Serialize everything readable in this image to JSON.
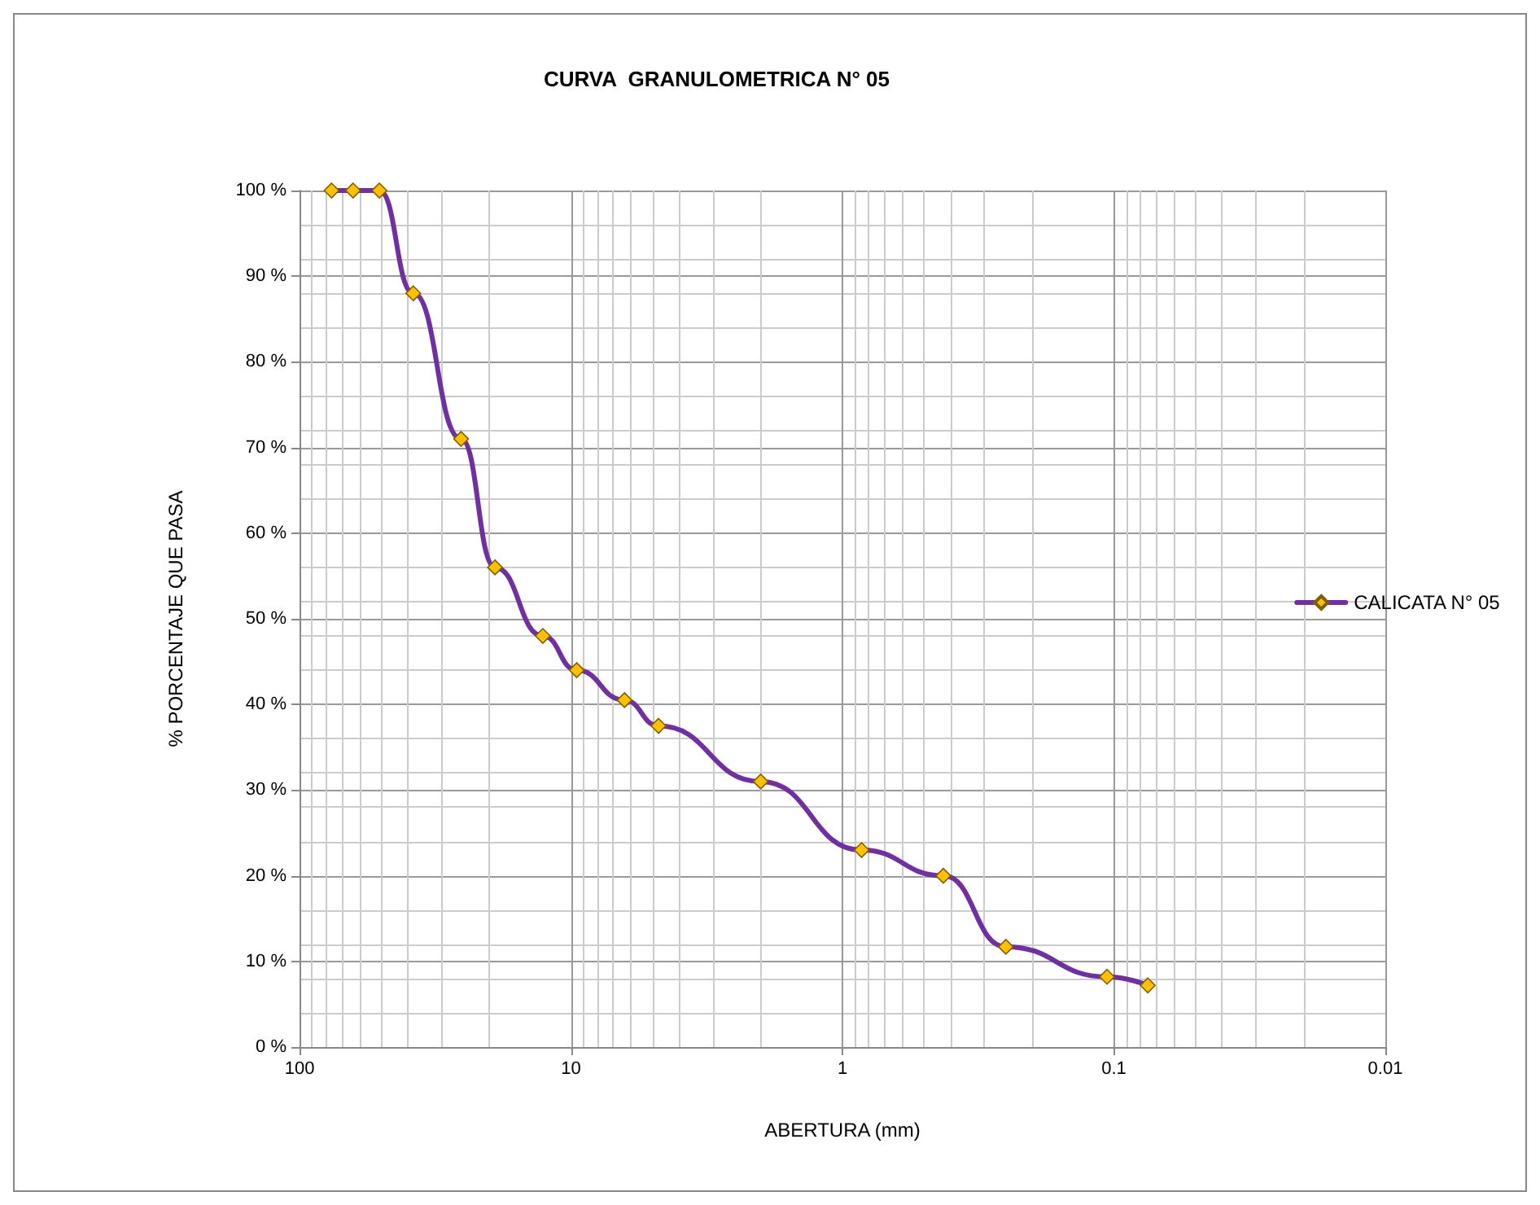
{
  "chart_data": {
    "type": "line",
    "title": "CURVA  GRANULOMETRICA N° 05",
    "xlabel": "ABERTURA (mm)",
    "ylabel": "% PORCENTAJE QUE PASA",
    "log": "x",
    "xlim": [
      100,
      0.01
    ],
    "xticks": [
      100,
      10,
      1,
      0.1,
      0.01
    ],
    "ylim": [
      0,
      100
    ],
    "yticks": [
      {
        "value": 0,
        "label": "0 %"
      },
      {
        "value": 10,
        "label": "10 %"
      },
      {
        "value": 20,
        "label": "20 %"
      },
      {
        "value": 30,
        "label": "30 %"
      },
      {
        "value": 40,
        "label": "40 %"
      },
      {
        "value": 50,
        "label": "50 %"
      },
      {
        "value": 60,
        "label": "60 %"
      },
      {
        "value": 70,
        "label": "70 %"
      },
      {
        "value": 80,
        "label": "80 %"
      },
      {
        "value": 90,
        "label": "90 %"
      },
      {
        "value": 100,
        "label": "100 %"
      }
    ],
    "grid": true,
    "legend": "right",
    "marker": "diamond",
    "line_style": "solid",
    "series": [
      {
        "name": "CALICATA N° 05",
        "color": "#7030a0",
        "x": [
          76.2,
          63.5,
          50.8,
          38.1,
          25.4,
          19.05,
          12.7,
          9.525,
          6.35,
          4.76,
          2.0,
          0.85,
          0.425,
          0.25,
          0.106,
          0.075
        ],
        "values": [
          100,
          100,
          100,
          88,
          71,
          56,
          48,
          44,
          40.5,
          37.5,
          31,
          23,
          20,
          11.7,
          8.2,
          7.2
        ]
      }
    ]
  }
}
